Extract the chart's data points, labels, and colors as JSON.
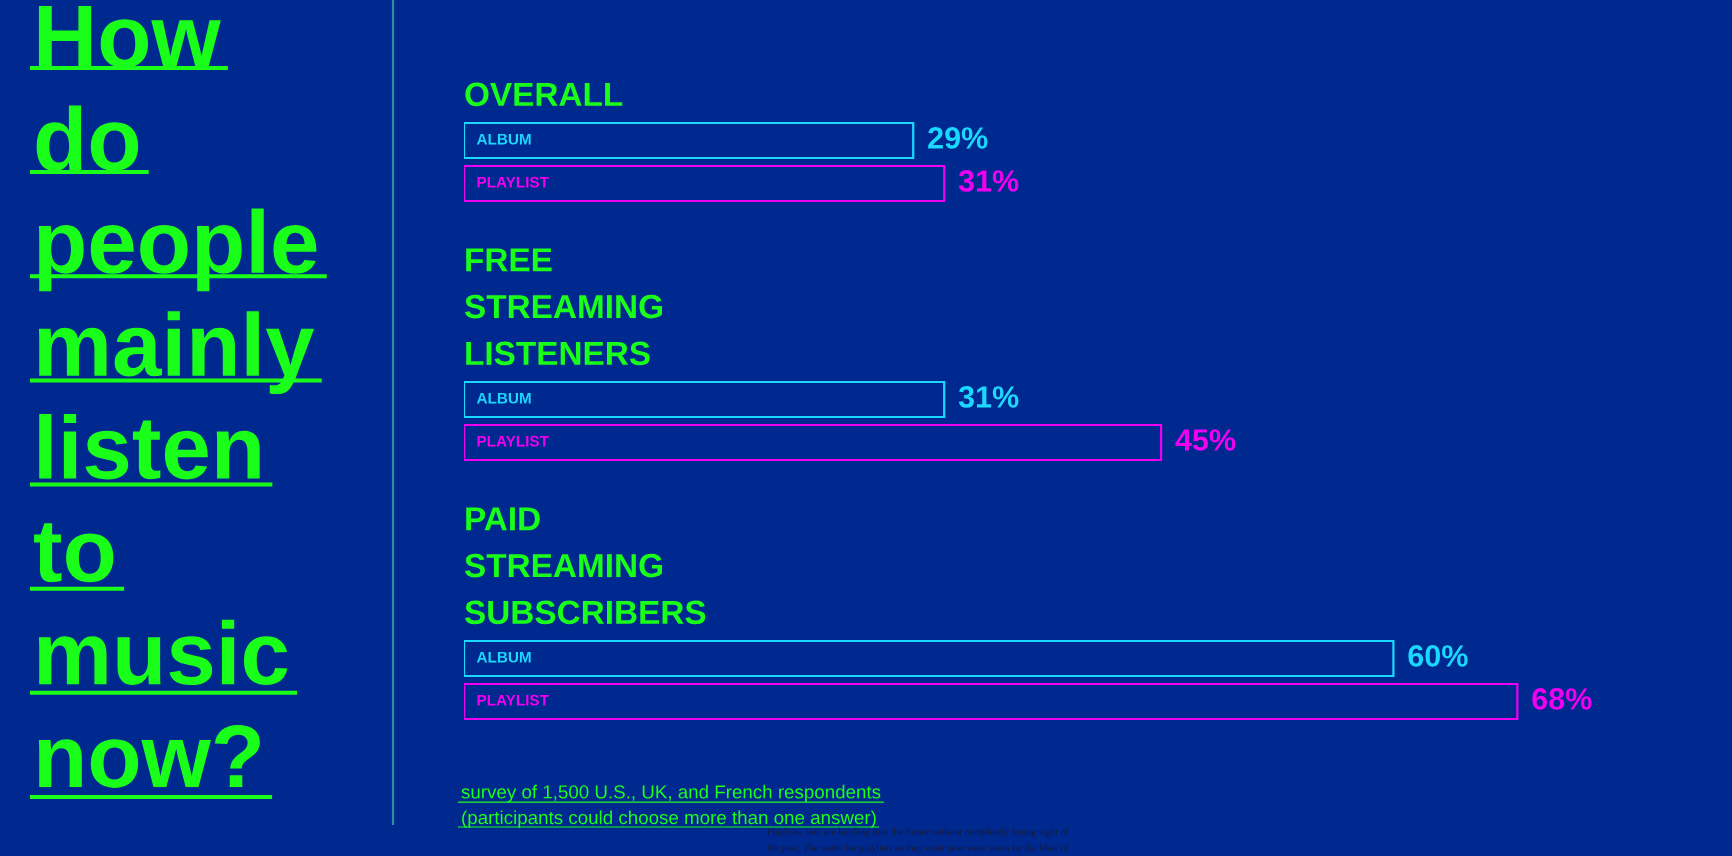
{
  "chart_data": {
    "type": "bar",
    "orientation": "horizontal",
    "title": "How do people mainly listen to music now?",
    "categories": [
      "OVERALL",
      "FREE STREAMING LISTENERS",
      "PAID STREAMING SUBSCRIBERS"
    ],
    "series": [
      {
        "name": "ALBUM",
        "color": "#1ad8ff",
        "values": [
          29,
          31,
          60
        ],
        "value_labels": [
          "29%",
          "31%",
          "60%"
        ]
      },
      {
        "name": "PLAYLIST",
        "color": "#f000f0",
        "values": [
          31,
          45,
          68
        ],
        "value_labels": [
          "31%",
          "45%",
          "68%"
        ]
      }
    ],
    "annotations": [
      "survey of 1,500 U.S., UK, and French respondents\n(participants could choose more than one answer)",
      "Playlists, too, are hurtling into the future without completely losing sight of\nthe past. The seeds for playlists as they exist now were sown by the likes of"
    ]
  }
}
